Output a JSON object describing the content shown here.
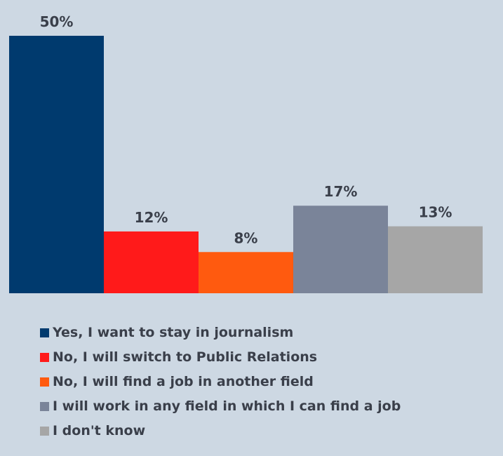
{
  "chart_data": {
    "type": "bar",
    "categories": [
      "Yes, I want to stay in journalism",
      "No, I will switch to Public Relations",
      "No, I will find a job in another field",
      "I will work in any field in which I can find a job",
      "I don't know"
    ],
    "values": [
      50,
      12,
      8,
      17,
      13
    ],
    "data_labels": [
      "50%",
      "12%",
      "8%",
      "17%",
      "13%"
    ],
    "colors": [
      "#003a6e",
      "#ff1a1a",
      "#ff5a0f",
      "#7a8499",
      "#a6a6a6"
    ],
    "ylim": [
      0,
      50
    ],
    "grid": false,
    "legend_position": "bottom",
    "title": "",
    "xlabel": "",
    "ylabel": ""
  }
}
